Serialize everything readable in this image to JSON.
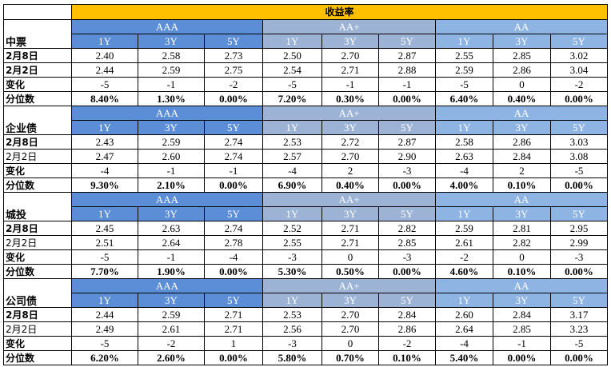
{
  "title": "收益率",
  "groups": [
    "AAA",
    "AA+",
    "AA"
  ],
  "tenors": [
    "1Y",
    "3Y",
    "5Y"
  ],
  "sections": [
    {
      "name": "中票",
      "rows": [
        {
          "label": "2月8日",
          "bold": true,
          "values": [
            "2.40",
            "2.58",
            "2.73",
            "2.50",
            "2.70",
            "2.87",
            "2.55",
            "2.85",
            "3.02"
          ]
        },
        {
          "label": "2月2日",
          "bold": true,
          "values": [
            "2.44",
            "2.59",
            "2.75",
            "2.54",
            "2.71",
            "2.88",
            "2.59",
            "2.86",
            "3.04"
          ]
        },
        {
          "label": "变化",
          "bold": true,
          "values": [
            "-5",
            "-1",
            "-2",
            "-5",
            "-1",
            "-1",
            "-5",
            "0",
            "-2"
          ]
        },
        {
          "label": "分位数",
          "bold": true,
          "values": [
            "8.40%",
            "1.30%",
            "0.00%",
            "7.20%",
            "0.30%",
            "0.00%",
            "6.40%",
            "0.40%",
            "0.00%"
          ],
          "bold_values": true
        }
      ]
    },
    {
      "name": "企业债",
      "rows": [
        {
          "label": "2月8日",
          "bold": true,
          "values": [
            "2.43",
            "2.59",
            "2.74",
            "2.53",
            "2.72",
            "2.87",
            "2.58",
            "2.86",
            "3.03"
          ]
        },
        {
          "label": "2月2日",
          "bold": false,
          "values": [
            "2.47",
            "2.60",
            "2.74",
            "2.57",
            "2.70",
            "2.90",
            "2.63",
            "2.84",
            "3.08"
          ]
        },
        {
          "label": "变化",
          "bold": true,
          "values": [
            "-4",
            "-1",
            "-1",
            "-4",
            "2",
            "-3",
            "-4",
            "2",
            "-5"
          ]
        },
        {
          "label": "分位数",
          "bold": true,
          "values": [
            "9.30%",
            "2.10%",
            "0.00%",
            "6.90%",
            "0.40%",
            "0.00%",
            "4.00%",
            "0.10%",
            "0.00%"
          ],
          "bold_values": true
        }
      ]
    },
    {
      "name": "城投",
      "rows": [
        {
          "label": "2月8日",
          "bold": true,
          "values": [
            "2.45",
            "2.63",
            "2.74",
            "2.52",
            "2.71",
            "2.82",
            "2.59",
            "2.81",
            "2.95"
          ]
        },
        {
          "label": "2月2日",
          "bold": false,
          "values": [
            "2.51",
            "2.64",
            "2.78",
            "2.55",
            "2.71",
            "2.85",
            "2.61",
            "2.82",
            "2.99"
          ]
        },
        {
          "label": "变化",
          "bold": true,
          "values": [
            "-5",
            "-1",
            "-4",
            "-3",
            "0",
            "-3",
            "-2",
            "0",
            "-3"
          ]
        },
        {
          "label": "分位数",
          "bold": true,
          "values": [
            "7.70%",
            "1.90%",
            "0.00%",
            "5.30%",
            "0.50%",
            "0.00%",
            "4.60%",
            "0.10%",
            "0.00%"
          ],
          "bold_values": true
        }
      ]
    },
    {
      "name": "公司债",
      "rows": [
        {
          "label": "2月8日",
          "bold": true,
          "values": [
            "2.44",
            "2.59",
            "2.71",
            "2.53",
            "2.70",
            "2.84",
            "2.60",
            "2.84",
            "3.17"
          ]
        },
        {
          "label": "2月2日",
          "bold": false,
          "values": [
            "2.49",
            "2.61",
            "2.71",
            "2.56",
            "2.70",
            "2.86",
            "2.64",
            "2.85",
            "3.23"
          ]
        },
        {
          "label": "变化",
          "bold": true,
          "values": [
            "-5",
            "-2",
            "1",
            "-3",
            "0",
            "-2",
            "-4",
            "-1",
            "-5"
          ]
        },
        {
          "label": "分位数",
          "bold": true,
          "values": [
            "6.20%",
            "2.60%",
            "0.00%",
            "5.80%",
            "0.70%",
            "0.10%",
            "5.40%",
            "0.00%",
            "0.00%"
          ],
          "bold_values": true
        }
      ]
    }
  ]
}
